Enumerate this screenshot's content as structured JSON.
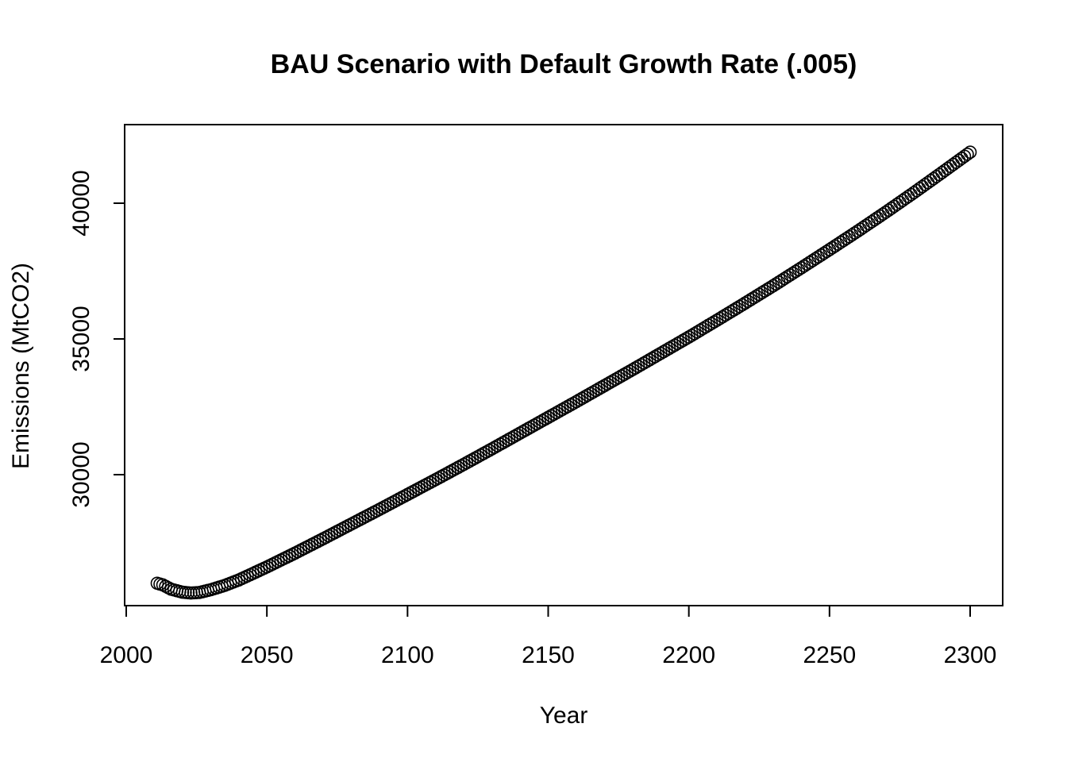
{
  "chart_data": {
    "type": "scatter",
    "title": "BAU Scenario with Default Growth Rate (.005)",
    "xlabel": "Year",
    "ylabel": "Emissions (MtCO2)",
    "xlim": [
      2010,
      2300
    ],
    "ylim": [
      25200,
      42200
    ],
    "xticks": [
      2000,
      2050,
      2100,
      2150,
      2200,
      2250,
      2300
    ],
    "yticks": [
      30000,
      35000,
      40000
    ],
    "grid": false,
    "series": [
      {
        "x_start": 2011,
        "x_end": 2300,
        "x_step": 1,
        "key_points": [
          [
            2011,
            26000
          ],
          [
            2013,
            25940
          ],
          [
            2016,
            25780
          ],
          [
            2020,
            25670
          ],
          [
            2023,
            25640
          ],
          [
            2026,
            25660
          ],
          [
            2030,
            25760
          ],
          [
            2035,
            25920
          ],
          [
            2040,
            26120
          ],
          [
            2050,
            26600
          ],
          [
            2060,
            27110
          ],
          [
            2070,
            27640
          ],
          [
            2080,
            28180
          ],
          [
            2090,
            28720
          ],
          [
            2100,
            29270
          ],
          [
            2110,
            29820
          ],
          [
            2120,
            30380
          ],
          [
            2130,
            30950
          ],
          [
            2140,
            31530
          ],
          [
            2150,
            32110
          ],
          [
            2160,
            32690
          ],
          [
            2170,
            33280
          ],
          [
            2180,
            33870
          ],
          [
            2190,
            34470
          ],
          [
            2200,
            35070
          ],
          [
            2210,
            35690
          ],
          [
            2220,
            36320
          ],
          [
            2230,
            36960
          ],
          [
            2240,
            37620
          ],
          [
            2250,
            38290
          ],
          [
            2260,
            38970
          ],
          [
            2270,
            39670
          ],
          [
            2280,
            40390
          ],
          [
            2290,
            41130
          ],
          [
            2300,
            41880
          ]
        ]
      }
    ]
  }
}
